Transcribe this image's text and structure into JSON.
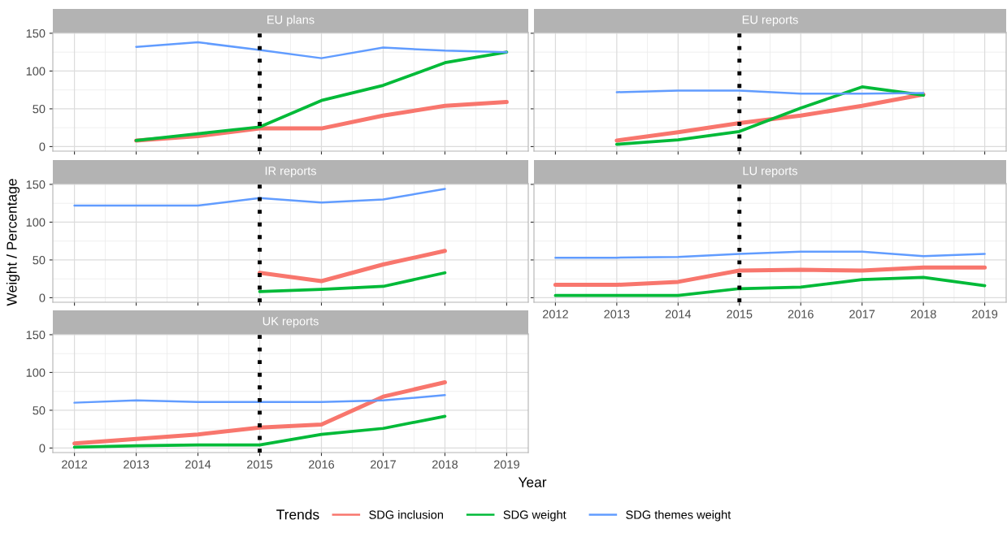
{
  "chart_data": [
    {
      "type": "line",
      "title": "EU plans",
      "ylabel": "Weight / Percentage",
      "legend_title": "Trends",
      "legend": "bottom",
      "grid": true,
      "tick_labels": "y",
      "xlim": [
        2011.65,
        2019.35
      ],
      "xticks": [
        2012,
        2013,
        2014,
        2015,
        2016,
        2017,
        2018,
        2019
      ],
      "ylim": [
        -6,
        151
      ],
      "yticks": [
        0,
        50,
        100,
        150
      ],
      "ref_lines": [
        {
          "axis": "x",
          "value": 2015,
          "color": "#000000",
          "line_style": "dotted"
        }
      ],
      "series": [
        {
          "name": "SDG inclusion",
          "color": "#f8766d",
          "x": [
            2013,
            2014,
            2015,
            2016,
            2017,
            2018,
            2019
          ],
          "values": [
            8,
            14,
            24,
            24,
            41,
            54,
            59
          ]
        },
        {
          "name": "SDG weight",
          "color": "#00ba38",
          "x": [
            2013,
            2014,
            2015,
            2016,
            2017,
            2018,
            2019
          ],
          "values": [
            8,
            17,
            26,
            61,
            81,
            111,
            125
          ]
        },
        {
          "name": "SDG themes weight",
          "color": "#619cff",
          "x": [
            2013,
            2014,
            2015,
            2016,
            2017,
            2018,
            2019
          ],
          "values": [
            132,
            138,
            128,
            117,
            131,
            127,
            125
          ]
        }
      ]
    },
    {
      "type": "line",
      "title": "EU reports",
      "grid": true,
      "tick_labels": false,
      "xlim": [
        2011.65,
        2019.35
      ],
      "xticks": [
        2012,
        2013,
        2014,
        2015,
        2016,
        2017,
        2018,
        2019
      ],
      "ylim": [
        -6,
        151
      ],
      "yticks": [
        0,
        50,
        100,
        150
      ],
      "ref_lines": [
        {
          "axis": "x",
          "value": 2015,
          "color": "#000000",
          "line_style": "dotted"
        }
      ],
      "series": [
        {
          "name": "SDG inclusion",
          "color": "#f8766d",
          "x": [
            2013,
            2014,
            2015,
            2016,
            2017,
            2018
          ],
          "values": [
            8,
            19,
            31,
            41,
            54,
            69
          ]
        },
        {
          "name": "SDG weight",
          "color": "#00ba38",
          "x": [
            2013,
            2014,
            2015,
            2016,
            2017,
            2018
          ],
          "values": [
            3,
            9,
            20,
            51,
            79,
            68
          ]
        },
        {
          "name": "SDG themes weight",
          "color": "#619cff",
          "x": [
            2013,
            2014,
            2015,
            2016,
            2017,
            2018
          ],
          "values": [
            72,
            74,
            74,
            70,
            70,
            71
          ]
        }
      ]
    },
    {
      "type": "line",
      "title": "IR reports",
      "grid": true,
      "tick_labels": "y",
      "xlim": [
        2011.65,
        2019.35
      ],
      "xticks": [
        2012,
        2013,
        2014,
        2015,
        2016,
        2017,
        2018,
        2019
      ],
      "ylim": [
        -6,
        151
      ],
      "yticks": [
        0,
        50,
        100,
        150
      ],
      "ref_lines": [
        {
          "axis": "x",
          "value": 2015,
          "color": "#000000",
          "line_style": "dotted"
        }
      ],
      "series": [
        {
          "name": "SDG inclusion",
          "color": "#f8766d",
          "x": [
            2015,
            2016,
            2017,
            2018
          ],
          "values": [
            33,
            22,
            44,
            62
          ]
        },
        {
          "name": "SDG weight",
          "color": "#00ba38",
          "x": [
            2015,
            2016,
            2017,
            2018
          ],
          "values": [
            8,
            11,
            15,
            33
          ]
        },
        {
          "name": "SDG themes weight",
          "color": "#619cff",
          "x": [
            2012,
            2013,
            2014,
            2015,
            2016,
            2017,
            2018
          ],
          "values": [
            122,
            122,
            122,
            132,
            126,
            130,
            144
          ]
        }
      ]
    },
    {
      "type": "line",
      "title": "LU reports",
      "grid": true,
      "tick_labels": "x",
      "xlim": [
        2011.65,
        2019.35
      ],
      "xticks": [
        2012,
        2013,
        2014,
        2015,
        2016,
        2017,
        2018,
        2019
      ],
      "ylim": [
        -6,
        151
      ],
      "yticks": [
        0,
        50,
        100,
        150
      ],
      "ref_lines": [
        {
          "axis": "x",
          "value": 2015,
          "color": "#000000",
          "line_style": "dotted"
        }
      ],
      "series": [
        {
          "name": "SDG inclusion",
          "color": "#f8766d",
          "x": [
            2012,
            2013,
            2014,
            2015,
            2016,
            2017,
            2018,
            2019
          ],
          "values": [
            17,
            17,
            21,
            36,
            37,
            36,
            40,
            40
          ]
        },
        {
          "name": "SDG weight",
          "color": "#00ba38",
          "x": [
            2012,
            2013,
            2014,
            2015,
            2016,
            2017,
            2018,
            2019
          ],
          "values": [
            3,
            3,
            3,
            12,
            14,
            24,
            27,
            16
          ]
        },
        {
          "name": "SDG themes weight",
          "color": "#619cff",
          "x": [
            2012,
            2013,
            2014,
            2015,
            2016,
            2017,
            2018,
            2019
          ],
          "values": [
            53,
            53,
            54,
            58,
            61,
            61,
            55,
            58
          ]
        }
      ]
    },
    {
      "type": "line",
      "title": "UK reports",
      "xlabel": "Year",
      "grid": true,
      "xlim": [
        2011.65,
        2019.35
      ],
      "xticks": [
        2012,
        2013,
        2014,
        2015,
        2016,
        2017,
        2018,
        2019
      ],
      "ylim": [
        -6,
        151
      ],
      "yticks": [
        0,
        50,
        100,
        150
      ],
      "ref_lines": [
        {
          "axis": "x",
          "value": 2015,
          "color": "#000000",
          "line_style": "dotted"
        }
      ],
      "series": [
        {
          "name": "SDG inclusion",
          "color": "#f8766d",
          "x": [
            2012,
            2013,
            2014,
            2015,
            2016,
            2017,
            2018
          ],
          "values": [
            6,
            12,
            18,
            27,
            31,
            68,
            87
          ]
        },
        {
          "name": "SDG weight",
          "color": "#00ba38",
          "x": [
            2012,
            2013,
            2014,
            2015,
            2016,
            2017,
            2018
          ],
          "values": [
            1,
            3,
            4,
            4,
            18,
            26,
            42
          ]
        },
        {
          "name": "SDG themes weight",
          "color": "#619cff",
          "x": [
            2012,
            2013,
            2014,
            2015,
            2016,
            2017,
            2018
          ],
          "values": [
            60,
            63,
            61,
            61,
            61,
            63,
            70
          ]
        }
      ]
    }
  ]
}
